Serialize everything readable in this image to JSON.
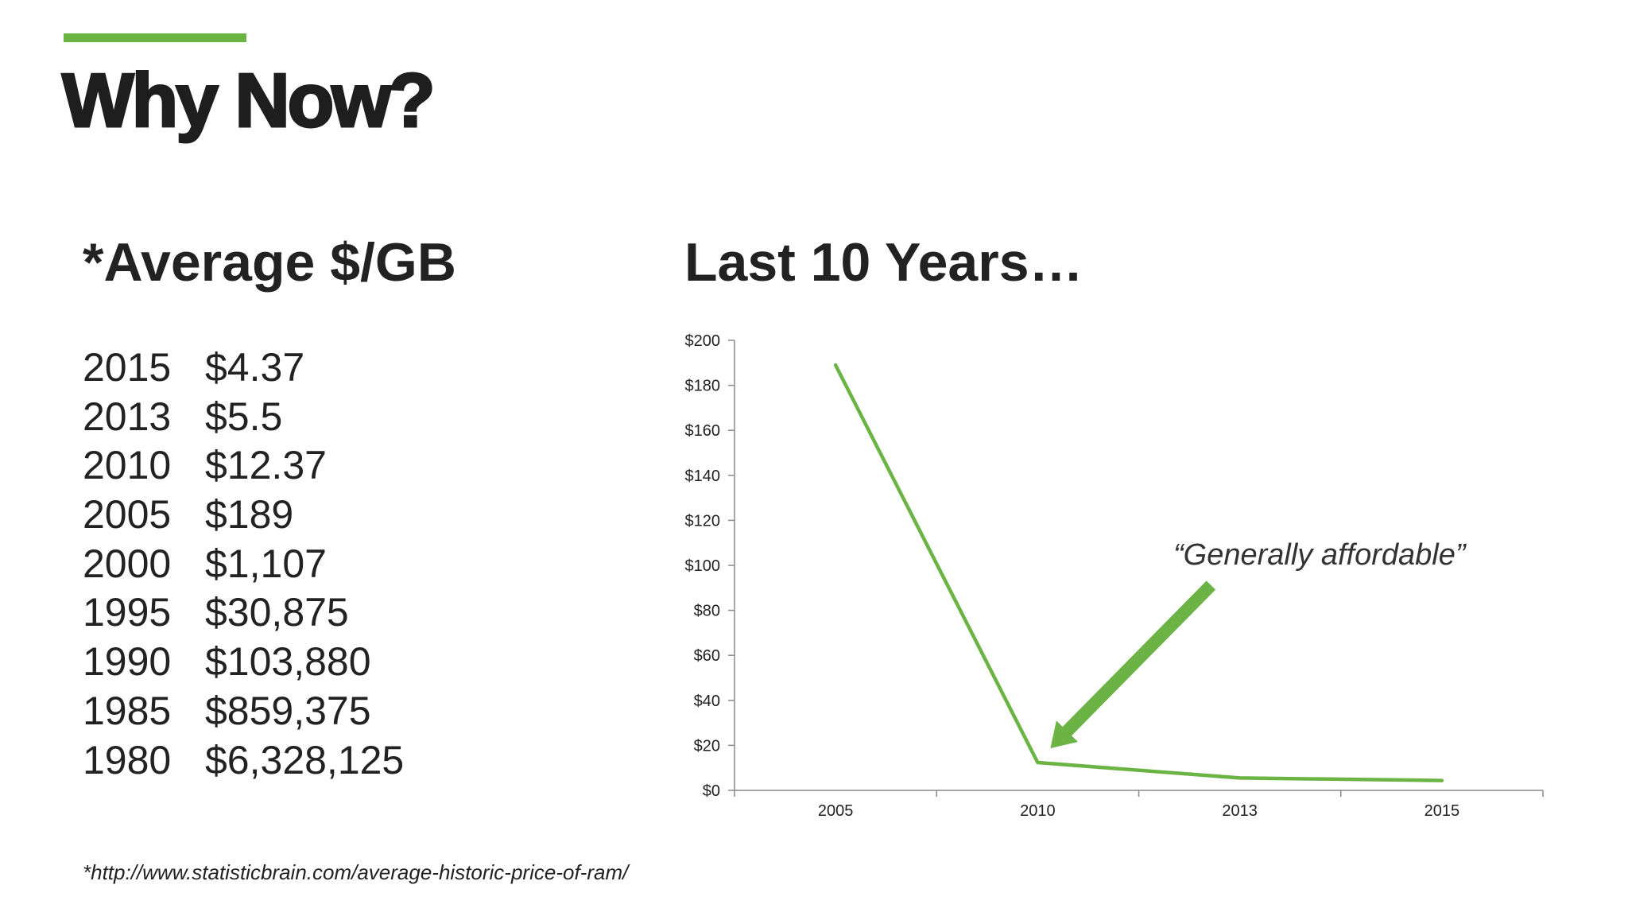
{
  "slide": {
    "title": "Why Now?",
    "accent_color": "#6ab344"
  },
  "left_panel": {
    "heading": "*Average $/GB",
    "rows": [
      {
        "year": "2015",
        "price": "$4.37"
      },
      {
        "year": "2013",
        "price": "$5.5"
      },
      {
        "year": "2010",
        "price": "$12.37"
      },
      {
        "year": "2005",
        "price": "$189"
      },
      {
        "year": "2000",
        "price": "$1,107"
      },
      {
        "year": "1995",
        "price": "$30,875"
      },
      {
        "year": "1990",
        "price": "$103,880"
      },
      {
        "year": "1985",
        "price": "$859,375"
      },
      {
        "year": "1980",
        "price": "$6,328,125"
      }
    ]
  },
  "right_panel": {
    "heading": "Last 10 Years…"
  },
  "footnote": "*http://www.statisticbrain.com/average-historic-price-of-ram/",
  "chart_data": {
    "type": "line",
    "title": "",
    "xlabel": "",
    "ylabel": "",
    "categories": [
      "2005",
      "2010",
      "2013",
      "2015"
    ],
    "series": [
      {
        "values": [
          189,
          12.37,
          5.5,
          4.37
        ],
        "color": "#6ab344"
      }
    ],
    "ylim": [
      0,
      200
    ],
    "ytick_labels": [
      "$0",
      "$20",
      "$40",
      "$60",
      "$80",
      "$100",
      "$120",
      "$140",
      "$160",
      "$180",
      "$200"
    ],
    "grid": false,
    "legend": "none",
    "annotation": {
      "text": "“Generally affordable”",
      "points_to_category": "2010",
      "arrow_color": "#6ab344"
    }
  }
}
